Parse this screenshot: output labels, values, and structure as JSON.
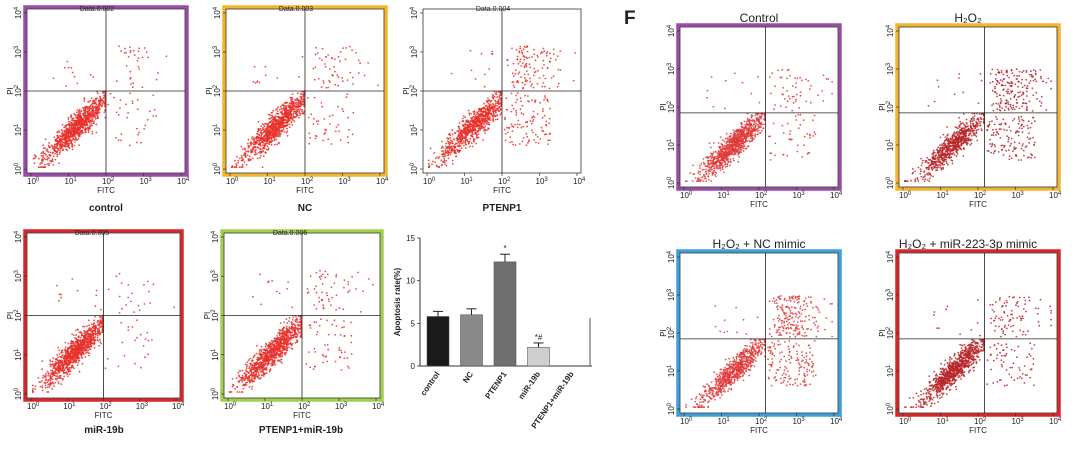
{
  "figure_letter": "F",
  "chart_data": [
    {
      "type": "scatter",
      "name_tag": "Data.0.002",
      "caption": "control",
      "xlabel": "FITC",
      "ylabel": "PI",
      "axis_ticks": [
        "0",
        "1",
        "2",
        "3",
        "4"
      ],
      "frame_color": "#9b4aa8",
      "dot_color": "#e8302a",
      "x_divider": 100,
      "y_divider": 100,
      "quadrants_percent": {
        "lower_left": 93,
        "lower_right": 3,
        "upper_left": 1,
        "upper_right": 3
      }
    },
    {
      "type": "scatter",
      "name_tag": "Data.0.003",
      "caption": "NC",
      "xlabel": "FITC",
      "ylabel": "PI",
      "axis_ticks": [
        "0",
        "1",
        "2",
        "3",
        "4"
      ],
      "frame_color": "#f3b530",
      "dot_color": "#e8302a",
      "x_divider": 100,
      "y_divider": 100,
      "quadrants_percent": {
        "lower_left": 90,
        "lower_right": 4,
        "upper_left": 1,
        "upper_right": 5
      }
    },
    {
      "type": "scatter",
      "name_tag": "Data.0.004",
      "caption": "PTENP1",
      "xlabel": "FITC",
      "ylabel": "PI",
      "axis_ticks": [
        "0",
        "1",
        "2",
        "3",
        "4"
      ],
      "frame_color": "",
      "dot_color": "#e8302a",
      "x_divider": 100,
      "y_divider": 100,
      "quadrants_percent": {
        "lower_left": 78,
        "lower_right": 10,
        "upper_left": 1,
        "upper_right": 11
      }
    },
    {
      "type": "scatter",
      "name_tag": "Data.0.005",
      "caption": "miR-19b",
      "xlabel": "FITC",
      "ylabel": "PI",
      "axis_ticks": [
        "0",
        "1",
        "2",
        "3",
        "4"
      ],
      "frame_color": "#d9262b",
      "dot_color": "#e8302a",
      "x_divider": 100,
      "y_divider": 100,
      "quadrants_percent": {
        "lower_left": 95,
        "lower_right": 2,
        "upper_left": 1,
        "upper_right": 2
      }
    },
    {
      "type": "scatter",
      "name_tag": "Data.0.006",
      "caption": "PTENP1+miR-19b",
      "xlabel": "FITC",
      "ylabel": "PI",
      "axis_ticks": [
        "0",
        "1",
        "2",
        "3",
        "4"
      ],
      "frame_color": "#a3cf4a",
      "dot_color": "#e8302a",
      "x_divider": 100,
      "y_divider": 100,
      "quadrants_percent": {
        "lower_left": 89,
        "lower_right": 5,
        "upper_left": 1,
        "upper_right": 5
      }
    },
    {
      "type": "bar",
      "ylabel": "Apoptosis rate(%)",
      "ylim": [
        0,
        15
      ],
      "yticks": [
        0,
        5,
        10,
        15
      ],
      "categories": [
        "control",
        "NC",
        "PTENP1",
        "miR-19b",
        "PTENP1+miR-19b"
      ],
      "values": [
        5.8,
        6.0,
        12.2,
        2.2,
        0
      ],
      "errors": [
        0.6,
        0.7,
        0.9,
        0.5,
        0
      ],
      "bar_colors": [
        "#1a1a1a",
        "#8a8a8a",
        "#6f6f6f",
        "#cfcfcf",
        "#ffffff"
      ],
      "annotations": [
        "",
        "",
        "*",
        "*#",
        ""
      ]
    },
    {
      "type": "scatter",
      "title": "Control",
      "xlabel": "FITC",
      "ylabel": "PI",
      "axis_ticks": [
        "0",
        "1",
        "2",
        "3",
        "4"
      ],
      "frame_color": "#9b4aa8",
      "dot_color": "#e03a3a",
      "x_divider": 150,
      "y_divider": 70,
      "quadrants_percent": {
        "lower_left": 90,
        "lower_right": 4,
        "upper_left": 1,
        "upper_right": 5
      }
    },
    {
      "type": "scatter",
      "title": "H₂O₂",
      "xlabel": "FITC",
      "ylabel": "PI",
      "axis_ticks": [
        "0",
        "1",
        "2",
        "3",
        "4"
      ],
      "frame_color": "#f3b530",
      "dot_color": "#b8262a",
      "x_divider": 150,
      "y_divider": 70,
      "quadrants_percent": {
        "lower_left": 70,
        "lower_right": 12,
        "upper_left": 1,
        "upper_right": 17
      }
    },
    {
      "type": "scatter",
      "title": "H₂O₂ + NC mimic",
      "xlabel": "FITC",
      "ylabel": "PI",
      "axis_ticks": [
        "0",
        "1",
        "2",
        "3",
        "4"
      ],
      "frame_color": "#3aa0dc",
      "dot_color": "#e03a3a",
      "x_divider": 150,
      "y_divider": 70,
      "quadrants_percent": {
        "lower_left": 68,
        "lower_right": 13,
        "upper_left": 1,
        "upper_right": 18
      }
    },
    {
      "type": "scatter",
      "title": "H₂O₂ + miR-223-3p mimic",
      "xlabel": "FITC",
      "ylabel": "PI",
      "axis_ticks": [
        "0",
        "1",
        "2",
        "3",
        "4"
      ],
      "frame_color": "#d9262b",
      "dot_color": "#b8262a",
      "x_divider": 150,
      "y_divider": 70,
      "quadrants_percent": {
        "lower_left": 85,
        "lower_right": 6,
        "upper_left": 1,
        "upper_right": 8
      }
    }
  ]
}
